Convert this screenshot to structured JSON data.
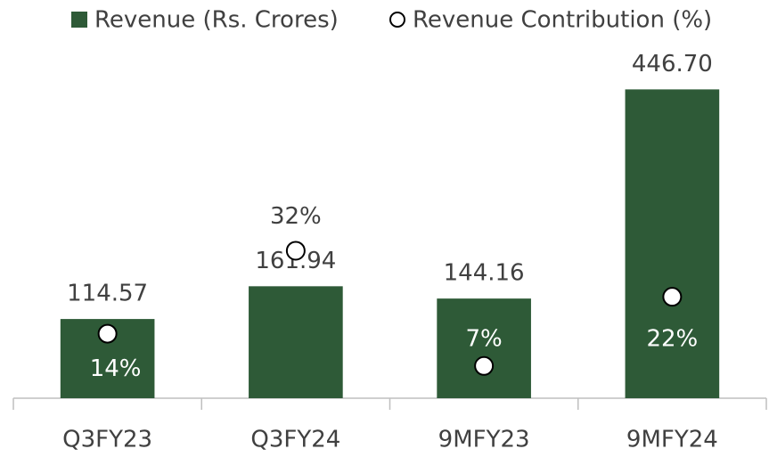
{
  "chart_data": {
    "type": "bar",
    "categories": [
      "Q3FY23",
      "Q3FY24",
      "9MFY23",
      "9MFY24"
    ],
    "series": [
      {
        "name": "Revenue (Rs. Crores)",
        "type": "bar",
        "color": "#2e5a37",
        "values": [
          114.57,
          161.94,
          144.16,
          446.7
        ],
        "value_labels": [
          "114.57",
          "161.94",
          "144.16",
          "446.70"
        ]
      },
      {
        "name": "Revenue Contribution (%)",
        "type": "scatter",
        "axis": "y2",
        "color": "#ffffff",
        "values": [
          14,
          32,
          7,
          22
        ],
        "value_labels": [
          "14%",
          "32%",
          "7%",
          "22%"
        ]
      }
    ],
    "ylim": [
      0,
      500
    ],
    "y2lim": [
      0,
      75
    ],
    "legend": "top"
  }
}
